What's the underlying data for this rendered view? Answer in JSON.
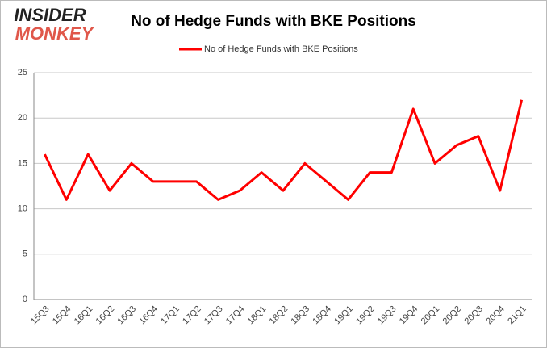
{
  "logo": {
    "line1": "INSIDER",
    "line2": "MONKEY"
  },
  "chart_data": {
    "type": "line",
    "title": "No of Hedge Funds with BKE Positions",
    "categories": [
      "15Q3",
      "15Q4",
      "16Q1",
      "16Q2",
      "16Q3",
      "16Q4",
      "17Q1",
      "17Q2",
      "17Q3",
      "17Q4",
      "18Q1",
      "18Q2",
      "18Q3",
      "18Q4",
      "19Q1",
      "19Q2",
      "19Q3",
      "19Q4",
      "20Q1",
      "20Q2",
      "20Q3",
      "20Q4",
      "21Q1"
    ],
    "series": [
      {
        "name": "No of Hedge Funds with BKE Positions",
        "color": "#ff0000",
        "values": [
          16,
          11,
          16,
          12,
          15,
          13,
          13,
          13,
          11,
          12,
          14,
          12,
          15,
          13,
          11,
          14,
          14,
          21,
          15,
          17,
          18,
          12,
          22
        ]
      }
    ],
    "ylim": [
      0,
      25
    ],
    "yticks": [
      0,
      5,
      10,
      15,
      20,
      25
    ],
    "grid": true,
    "legend": "top"
  }
}
